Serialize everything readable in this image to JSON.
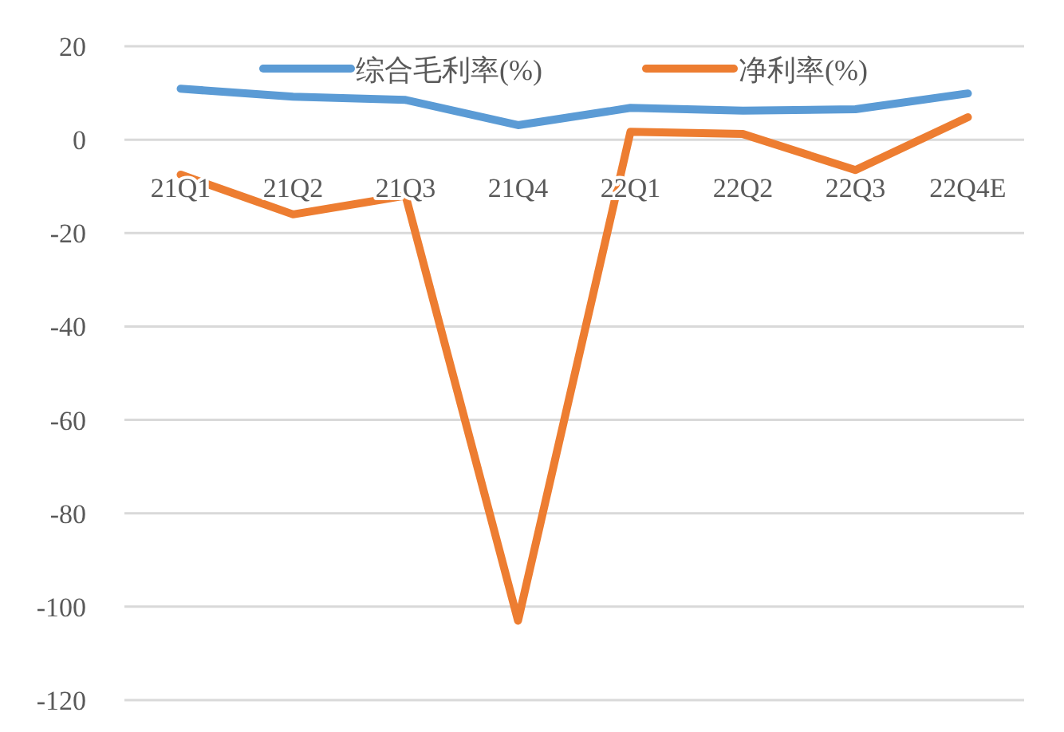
{
  "chart_data": {
    "type": "line",
    "categories": [
      "21Q1",
      "21Q2",
      "21Q3",
      "21Q4",
      "22Q1",
      "22Q2",
      "22Q3",
      "22Q4E"
    ],
    "series": [
      {
        "name": "综合毛利率(%)",
        "color": "#5b9bd5",
        "values": [
          10.9,
          9.2,
          8.5,
          3.1,
          6.8,
          6.2,
          6.5,
          9.9
        ]
      },
      {
        "name": "净利率(%)",
        "color": "#ed7d31",
        "values": [
          -7.5,
          -16,
          -12,
          -103,
          1.7,
          1.2,
          -6.5,
          4.8
        ]
      }
    ],
    "ylim": [
      -120,
      20
    ],
    "yticks": [
      -120,
      -100,
      -80,
      -60,
      -40,
      -20,
      0,
      20
    ],
    "grid": "y",
    "legend": "top",
    "marker": "none",
    "line_style": "solid"
  }
}
